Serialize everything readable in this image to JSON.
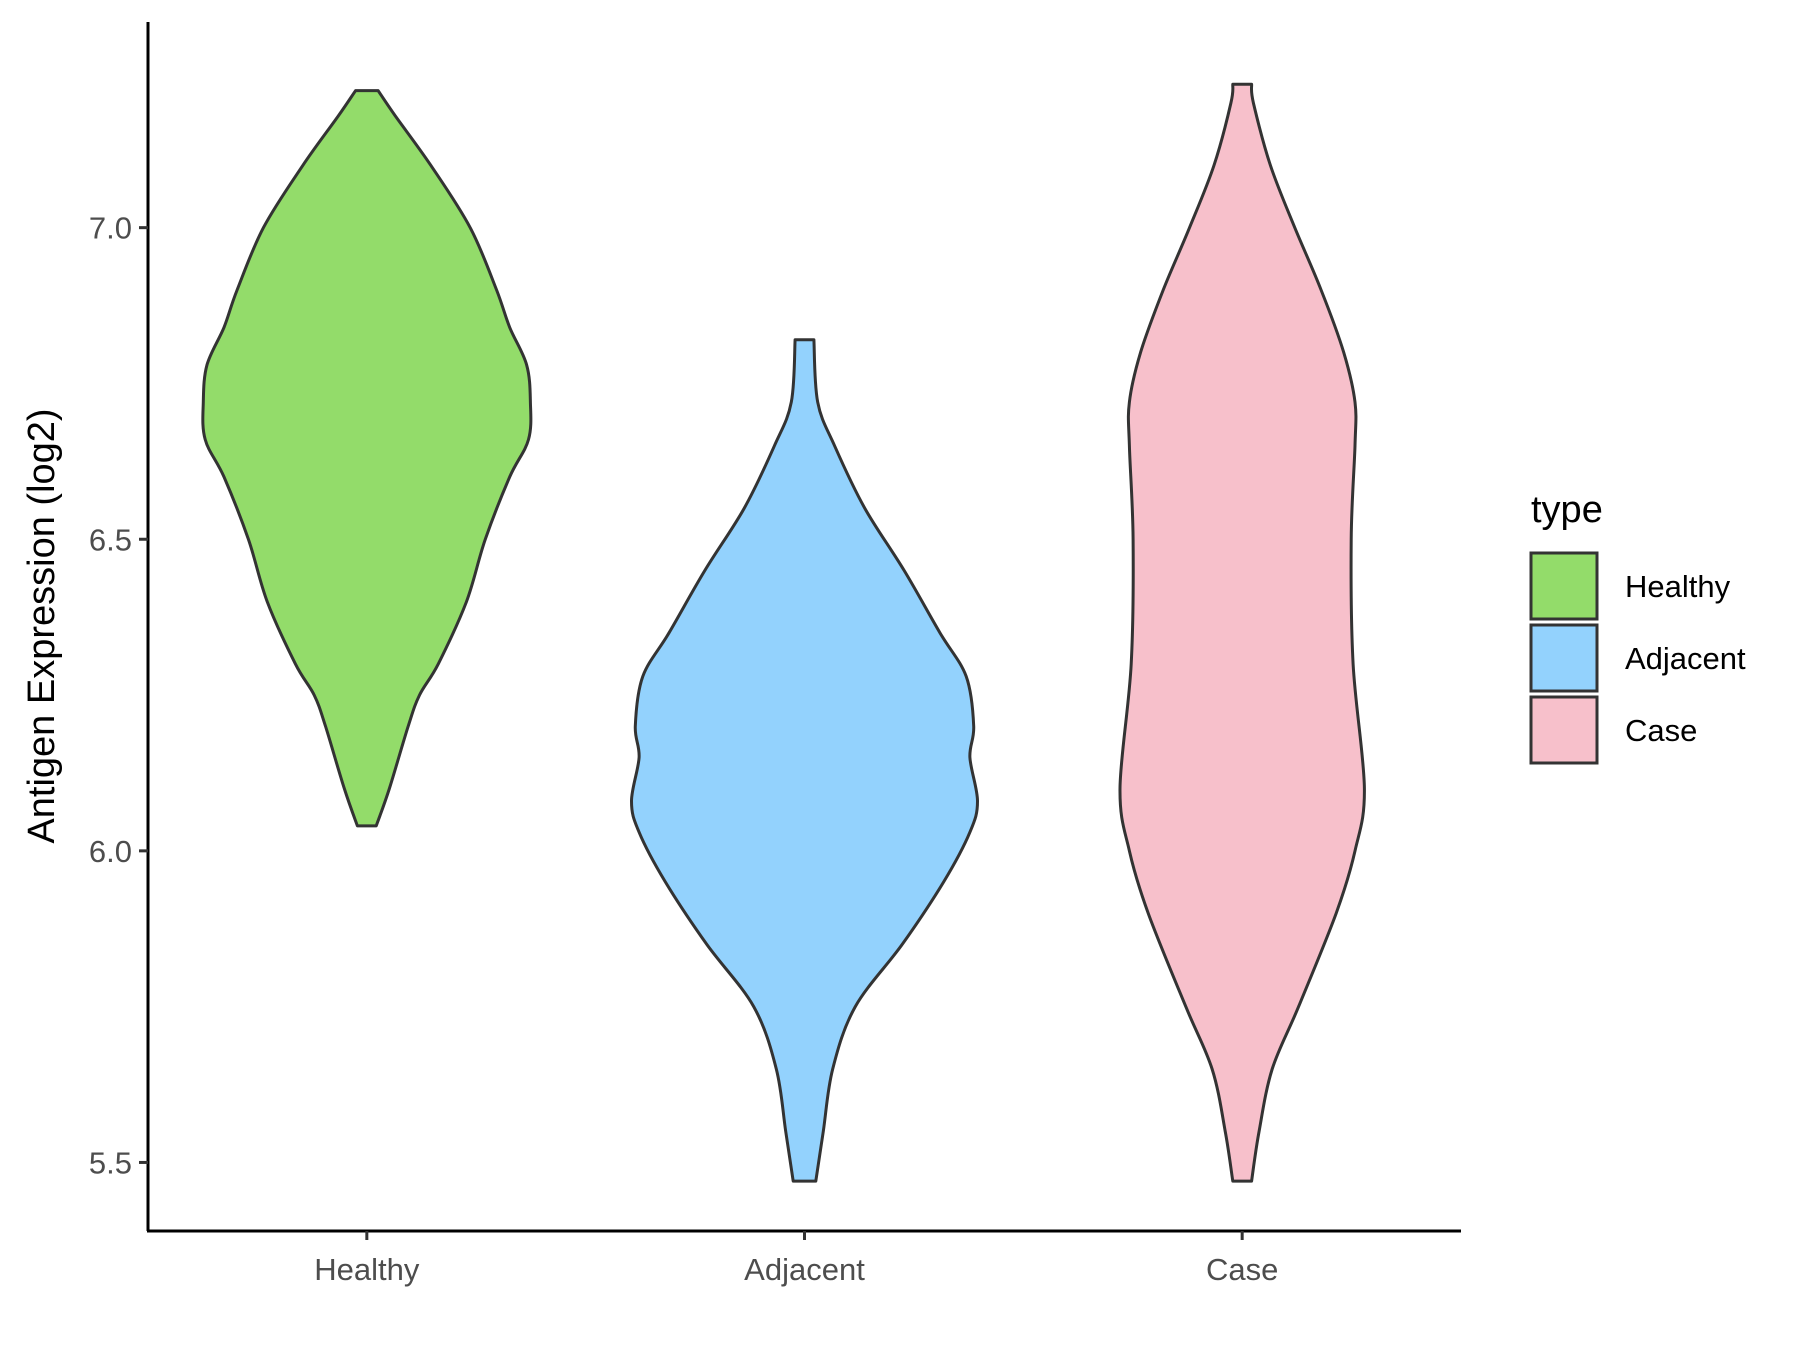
{
  "chart_data": {
    "type": "violin",
    "title": "",
    "xlabel": "",
    "ylabel": "Antigen Expression (log2)",
    "ylim": [
      5.39,
      7.33
    ],
    "yticks": [
      "5.5",
      "6.0",
      "6.5",
      "7.0"
    ],
    "categories": [
      "Healthy",
      "Adjacent",
      "Case"
    ],
    "grid": false,
    "legend": {
      "title": "type",
      "position": "right",
      "entries": [
        "Healthy",
        "Adjacent",
        "Case"
      ]
    },
    "colors": {
      "Healthy": "#93dc6a",
      "Adjacent": "#93d2fd",
      "Case": "#f7c0cb"
    },
    "series": [
      {
        "name": "Healthy",
        "min": 6.04,
        "max": 7.22,
        "density_profile": [
          [
            6.04,
            0.05
          ],
          [
            6.1,
            0.12
          ],
          [
            6.2,
            0.22
          ],
          [
            6.25,
            0.28
          ],
          [
            6.3,
            0.38
          ],
          [
            6.4,
            0.53
          ],
          [
            6.5,
            0.63
          ],
          [
            6.6,
            0.76
          ],
          [
            6.66,
            0.86
          ],
          [
            6.72,
            0.87
          ],
          [
            6.78,
            0.85
          ],
          [
            6.84,
            0.76
          ],
          [
            6.9,
            0.69
          ],
          [
            7.0,
            0.55
          ],
          [
            7.1,
            0.34
          ],
          [
            7.18,
            0.15
          ],
          [
            7.22,
            0.06
          ]
        ]
      },
      {
        "name": "Adjacent",
        "min": 5.47,
        "max": 6.82,
        "density_profile": [
          [
            5.47,
            0.06
          ],
          [
            5.55,
            0.1
          ],
          [
            5.65,
            0.15
          ],
          [
            5.75,
            0.27
          ],
          [
            5.85,
            0.52
          ],
          [
            5.95,
            0.74
          ],
          [
            6.03,
            0.88
          ],
          [
            6.08,
            0.92
          ],
          [
            6.15,
            0.88
          ],
          [
            6.2,
            0.9
          ],
          [
            6.28,
            0.86
          ],
          [
            6.35,
            0.72
          ],
          [
            6.45,
            0.53
          ],
          [
            6.55,
            0.32
          ],
          [
            6.65,
            0.16
          ],
          [
            6.72,
            0.07
          ],
          [
            6.82,
            0.05
          ]
        ]
      },
      {
        "name": "Case",
        "min": 5.47,
        "max": 7.23,
        "density_profile": [
          [
            5.47,
            0.05
          ],
          [
            5.55,
            0.09
          ],
          [
            5.65,
            0.16
          ],
          [
            5.75,
            0.3
          ],
          [
            5.9,
            0.5
          ],
          [
            6.0,
            0.6
          ],
          [
            6.1,
            0.65
          ],
          [
            6.3,
            0.59
          ],
          [
            6.5,
            0.58
          ],
          [
            6.65,
            0.6
          ],
          [
            6.72,
            0.6
          ],
          [
            6.8,
            0.54
          ],
          [
            6.9,
            0.42
          ],
          [
            7.0,
            0.28
          ],
          [
            7.1,
            0.15
          ],
          [
            7.2,
            0.06
          ],
          [
            7.23,
            0.05
          ]
        ]
      }
    ]
  }
}
